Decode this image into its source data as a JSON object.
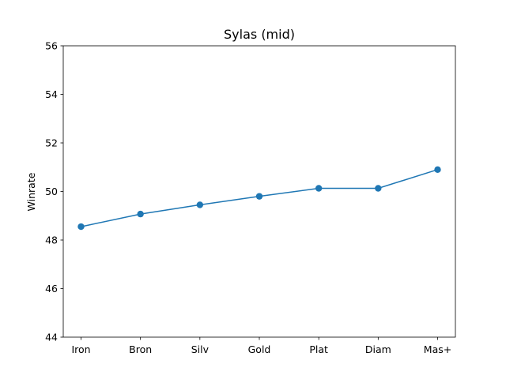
{
  "chart_data": {
    "type": "line",
    "title": "Sylas (mid)",
    "xlabel": "",
    "ylabel": "Winrate",
    "categories": [
      "Iron",
      "Bron",
      "Silv",
      "Gold",
      "Plat",
      "Diam",
      "Mas+"
    ],
    "series": [
      {
        "values": [
          48.55,
          49.07,
          49.45,
          49.8,
          50.13,
          50.13,
          50.9
        ]
      }
    ],
    "ylim": [
      44,
      56
    ],
    "yticks": [
      44,
      46,
      48,
      50,
      52,
      54,
      56
    ],
    "grid": false,
    "line_color": "#1f77b4"
  }
}
